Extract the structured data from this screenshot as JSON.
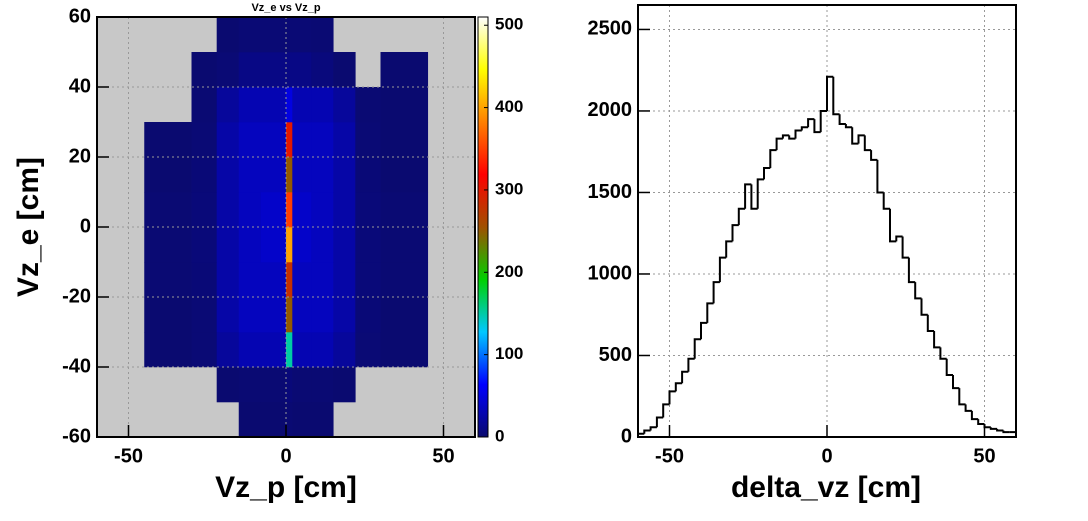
{
  "chart_data": [
    {
      "type": "heatmap",
      "title": "Vz_e vs Vz_p",
      "xlabel": "Vz_p  [cm]",
      "ylabel": "Vz_e [cm]",
      "xlim": [
        -60,
        60
      ],
      "ylim": [
        -60,
        60
      ],
      "xticks": [
        -50,
        0,
        50
      ],
      "yticks": [
        -60,
        -40,
        -20,
        0,
        20,
        40,
        60
      ],
      "zlim": [
        0,
        510
      ],
      "zticks": [
        0,
        100,
        200,
        300,
        400,
        500
      ],
      "grid": true,
      "background": "#c8c8c8",
      "colorscale": [
        "#0a0a6e",
        "#0000ff",
        "#00c8ff",
        "#00d000",
        "#a05000",
        "#ff0000",
        "#ff8000",
        "#ffff00",
        "#ffffff"
      ],
      "x_bins": [
        -60,
        -45,
        -30,
        -22,
        -15,
        -8,
        0,
        2,
        8,
        15,
        22,
        30,
        45,
        60
      ],
      "y_bins": [
        -60,
        -50,
        -40,
        -30,
        -20,
        -10,
        0,
        10,
        20,
        30,
        40,
        50,
        60
      ],
      "z": [
        [
          0,
          0,
          0,
          0,
          1,
          1,
          2,
          1,
          1,
          0,
          0,
          0,
          0
        ],
        [
          0,
          0,
          0,
          1,
          2,
          2,
          5,
          2,
          2,
          1,
          0,
          0,
          0
        ],
        [
          0,
          1,
          3,
          20,
          30,
          30,
          150,
          30,
          30,
          20,
          3,
          1,
          0
        ],
        [
          0,
          1,
          3,
          25,
          35,
          35,
          250,
          35,
          35,
          25,
          4,
          1,
          0
        ],
        [
          0,
          2,
          4,
          25,
          35,
          35,
          280,
          35,
          35,
          25,
          5,
          2,
          0
        ],
        [
          0,
          2,
          5,
          25,
          35,
          40,
          400,
          40,
          35,
          25,
          5,
          2,
          0
        ],
        [
          0,
          2,
          5,
          25,
          35,
          40,
          350,
          40,
          35,
          25,
          5,
          2,
          0
        ],
        [
          0,
          1,
          4,
          25,
          35,
          35,
          250,
          35,
          35,
          25,
          4,
          1,
          0
        ],
        [
          0,
          1,
          3,
          25,
          35,
          35,
          300,
          35,
          35,
          25,
          3,
          1,
          0
        ],
        [
          0,
          0,
          2,
          20,
          30,
          30,
          50,
          30,
          30,
          20,
          2,
          1,
          0
        ],
        [
          0,
          0,
          1,
          3,
          10,
          10,
          10,
          10,
          6,
          1,
          0,
          1,
          0
        ],
        [
          0,
          0,
          0,
          1,
          3,
          3,
          3,
          3,
          2,
          0,
          0,
          0,
          0
        ]
      ]
    },
    {
      "type": "histogram",
      "xlabel": "delta_vz [cm]",
      "xlim": [
        -60,
        60
      ],
      "ylim": [
        0,
        2650
      ],
      "xticks": [
        -50,
        0,
        50
      ],
      "yticks": [
        0,
        500,
        1000,
        1500,
        2000,
        2500
      ],
      "grid": true,
      "color": "#000000",
      "bins": [
        -60,
        -58,
        -56,
        -54,
        -52,
        -50,
        -48,
        -46,
        -44,
        -42,
        -40,
        -38,
        -36,
        -34,
        -32,
        -30,
        -28,
        -26,
        -24,
        -22,
        -20,
        -18,
        -16,
        -14,
        -12,
        -10,
        -8,
        -6,
        -4,
        -2,
        0,
        2,
        4,
        6,
        8,
        10,
        12,
        14,
        16,
        18,
        20,
        22,
        24,
        26,
        28,
        30,
        32,
        34,
        36,
        38,
        40,
        42,
        44,
        46,
        48,
        50,
        52,
        54,
        56,
        58,
        60
      ],
      "values": [
        20,
        40,
        60,
        120,
        200,
        280,
        330,
        400,
        480,
        600,
        700,
        820,
        950,
        1100,
        1200,
        1300,
        1400,
        1550,
        1400,
        1580,
        1650,
        1760,
        1830,
        1850,
        1830,
        1880,
        1900,
        1950,
        1870,
        2000,
        2210,
        1980,
        1920,
        1900,
        1800,
        1850,
        1760,
        1700,
        1500,
        1400,
        1200,
        1230,
        1100,
        950,
        850,
        750,
        650,
        550,
        480,
        380,
        300,
        200,
        160,
        110,
        80,
        60,
        50,
        40,
        30,
        30
      ]
    }
  ]
}
